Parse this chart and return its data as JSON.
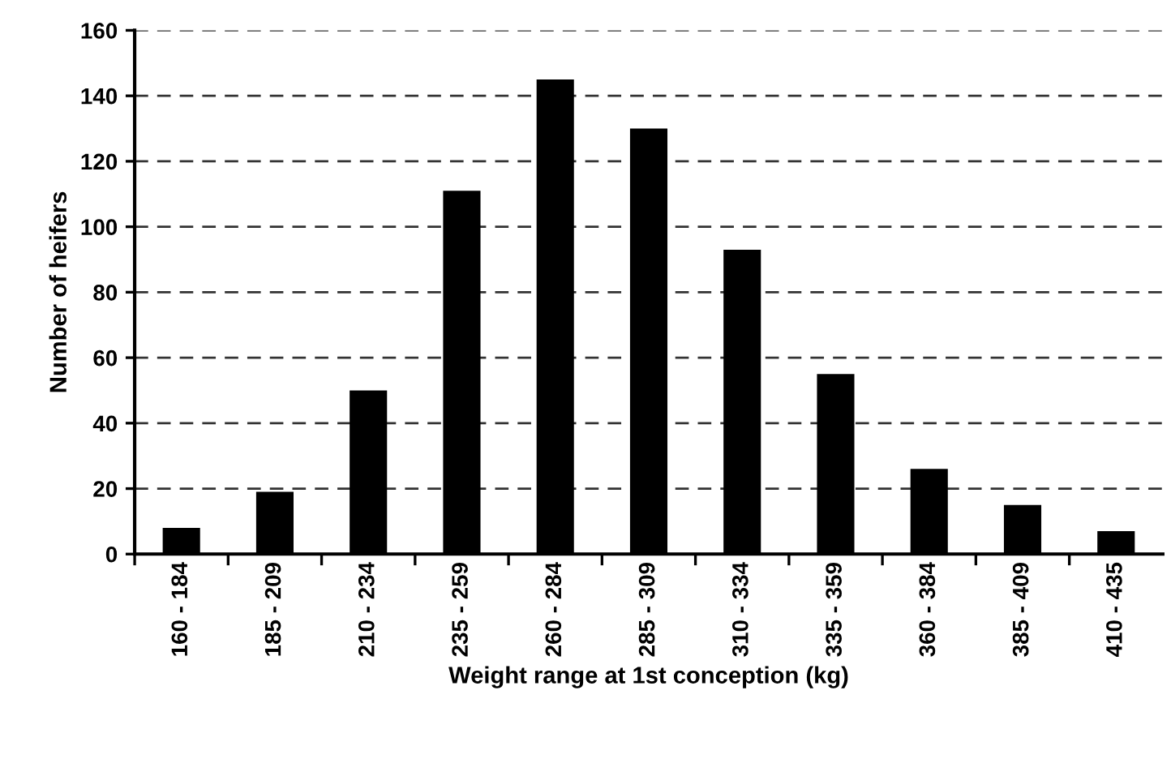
{
  "chart_data": {
    "type": "bar",
    "xlabel": "Weight range at 1st conception (kg)",
    "ylabel": "Number of heifers",
    "categories": [
      "160 - 184",
      "185 - 209",
      "210 - 234",
      "235 - 259",
      "260 - 284",
      "285 - 309",
      "310 - 334",
      "335 - 359",
      "360 - 384",
      "385 - 409",
      "410 - 435"
    ],
    "values": [
      8,
      19,
      50,
      111,
      145,
      130,
      93,
      55,
      26,
      15,
      7
    ],
    "color": "#000000",
    "ylim": [
      0,
      160
    ],
    "yticks": [
      0,
      20,
      40,
      60,
      80,
      100,
      120,
      140,
      160
    ],
    "grid": "y",
    "legend": false
  }
}
